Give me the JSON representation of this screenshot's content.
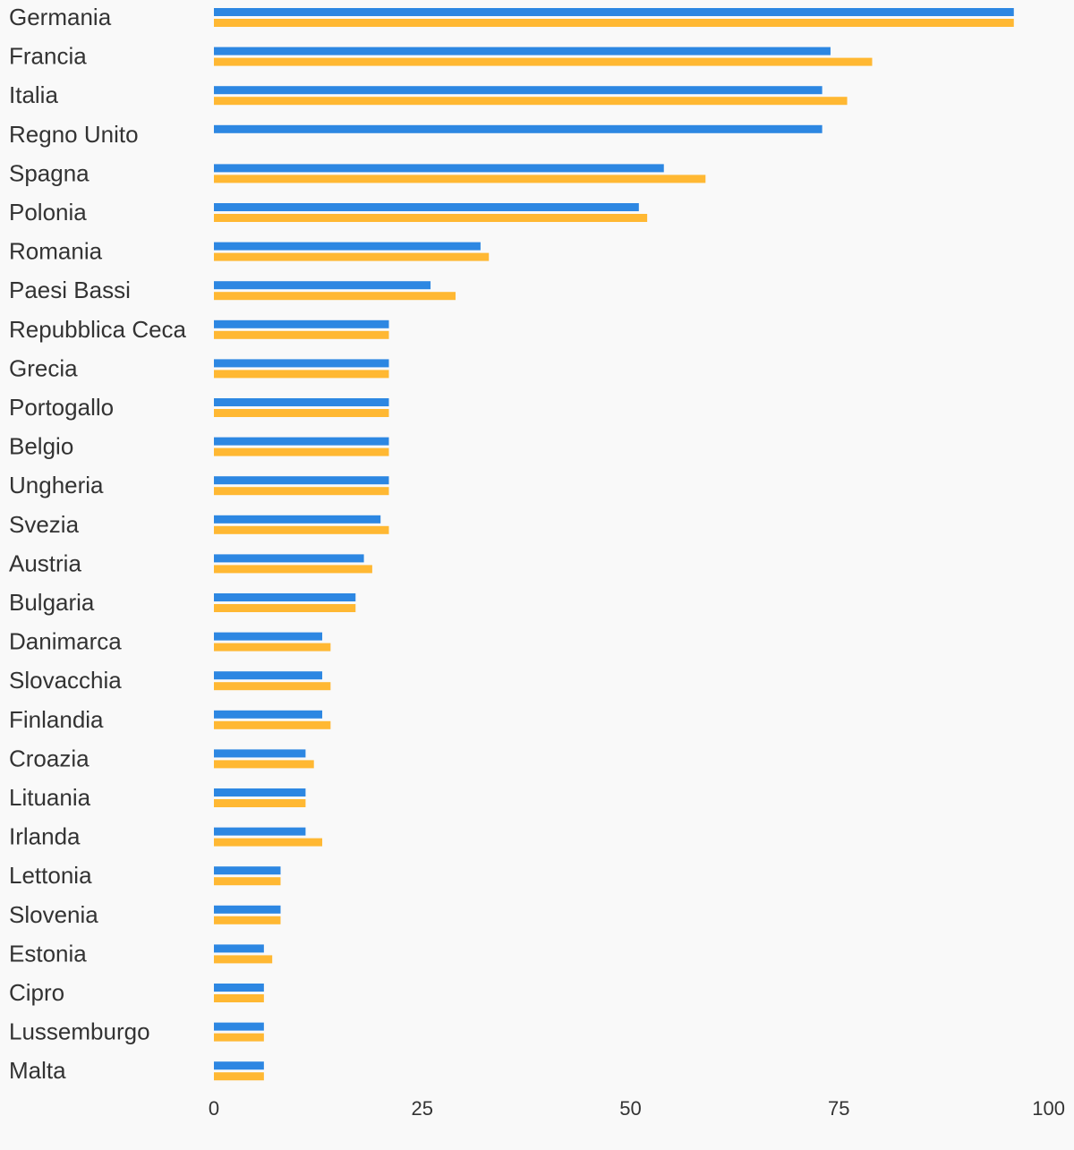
{
  "chart_data": {
    "type": "bar",
    "orientation": "horizontal",
    "title": "",
    "xlabel": "",
    "ylabel": "",
    "xlim": [
      0,
      100
    ],
    "xticks": [
      0,
      25,
      50,
      75,
      100
    ],
    "grid": false,
    "legend": "none",
    "categories": [
      "Germania",
      "Francia",
      "Italia",
      "Regno Unito",
      "Spagna",
      "Polonia",
      "Romania",
      "Paesi Bassi",
      "Repubblica Ceca",
      "Grecia",
      "Portogallo",
      "Belgio",
      "Ungheria",
      "Svezia",
      "Austria",
      "Bulgaria",
      "Danimarca",
      "Slovacchia",
      "Finlandia",
      "Croazia",
      "Lituania",
      "Irlanda",
      "Lettonia",
      "Slovenia",
      "Estonia",
      "Cipro",
      "Lussemburgo",
      "Malta"
    ],
    "series": [
      {
        "color": "#2d87e2",
        "values": [
          96,
          74,
          73,
          73,
          54,
          51,
          32,
          26,
          21,
          21,
          21,
          21,
          21,
          20,
          18,
          17,
          13,
          13,
          13,
          11,
          11,
          11,
          8,
          8,
          6,
          6,
          6,
          6
        ]
      },
      {
        "color": "#ffb833",
        "values": [
          96,
          79,
          76,
          null,
          59,
          52,
          33,
          29,
          21,
          21,
          21,
          21,
          21,
          21,
          19,
          17,
          14,
          14,
          14,
          12,
          11,
          13,
          8,
          8,
          7,
          6,
          6,
          6
        ]
      }
    ]
  }
}
